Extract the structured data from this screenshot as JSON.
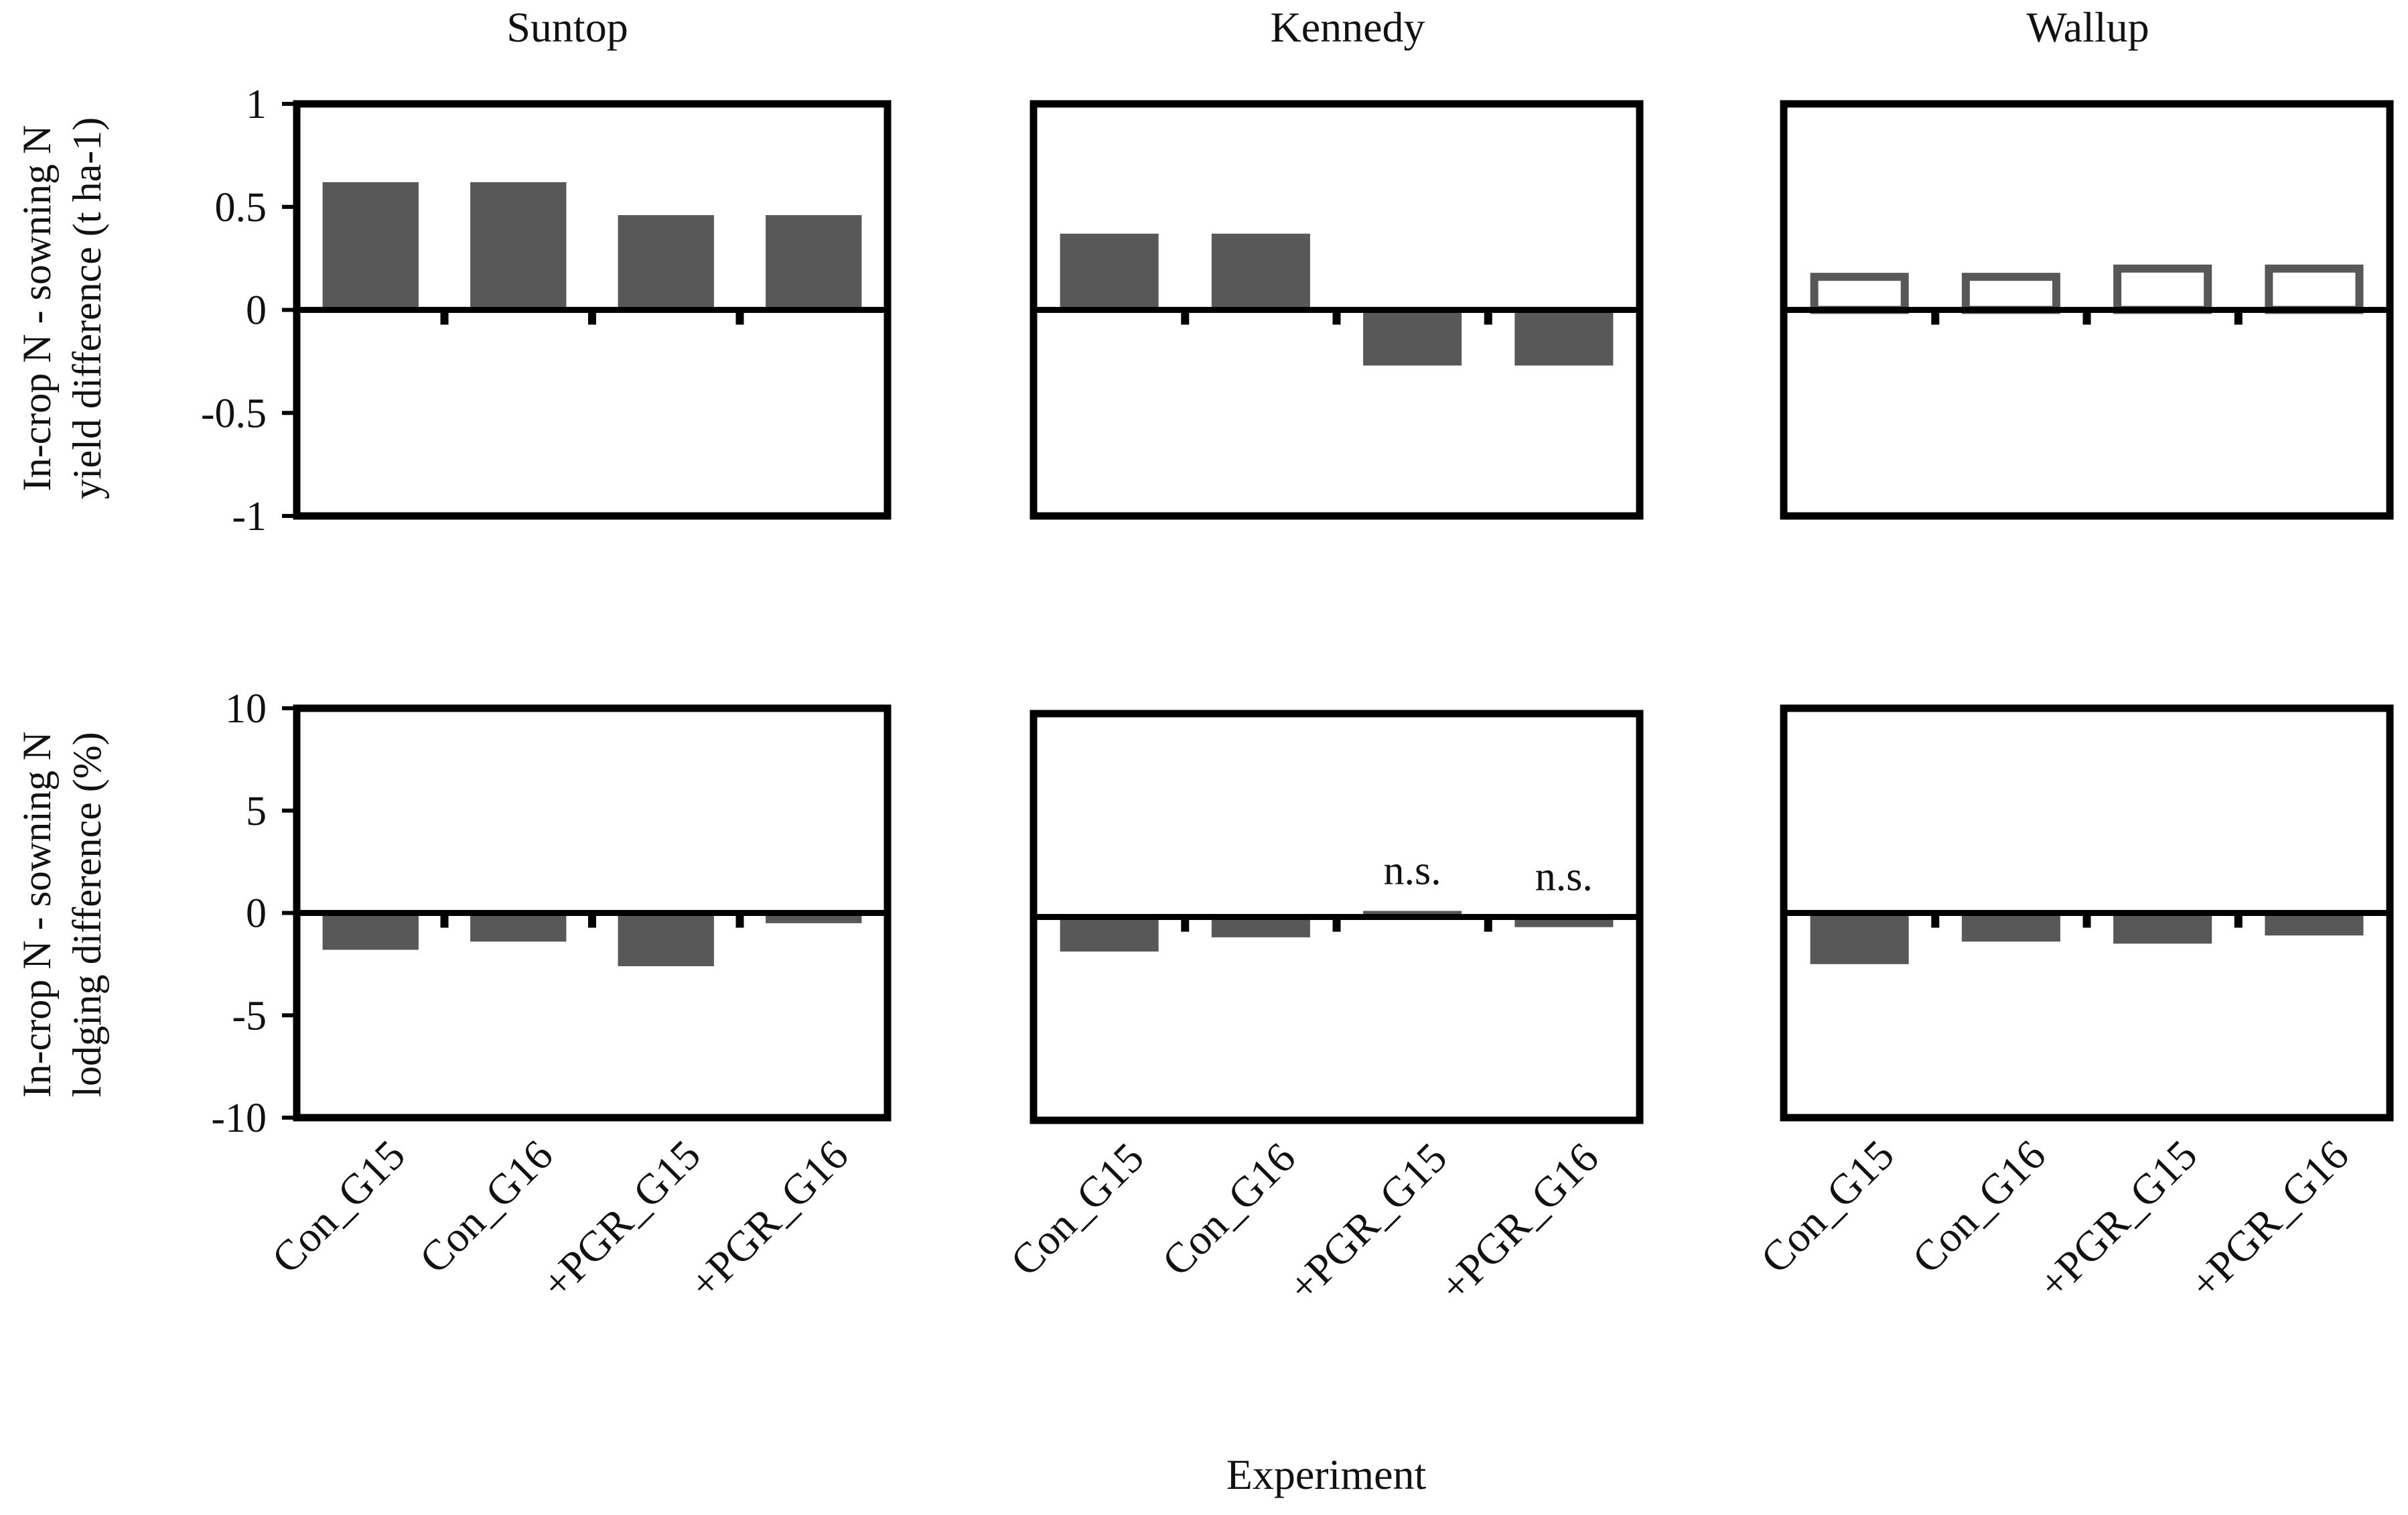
{
  "figure": {
    "xlabel": "Experiment",
    "row_labels": [
      {
        "line1": "In-crop N - sowning N",
        "line2": "yield difference (t ha-1)"
      },
      {
        "line1": "In-crop N - sowning N",
        "line2": "lodging difference (%)"
      }
    ],
    "column_titles": [
      "Suntop",
      "Kennedy",
      "Wallup"
    ]
  },
  "colors": {
    "bar_fill": "#585858",
    "bar_outline": "#585858",
    "axis": "#000000",
    "background": "#ffffff"
  },
  "chart_data": [
    {
      "type": "bar",
      "title": "Suntop",
      "panel": "yield",
      "categories": [
        "Con_G15",
        "Con_G16",
        "+PGR_G15",
        "+PGR_G16"
      ],
      "values": [
        0.62,
        0.62,
        0.46,
        0.46
      ],
      "fill": "solid",
      "annotations": [
        "",
        "",
        "",
        ""
      ],
      "ylabel": "In-crop N - sowning N yield difference (t ha-1)",
      "ylim": [
        -1,
        1
      ],
      "yticks": [
        1,
        0.5,
        0,
        -0.5,
        -1
      ],
      "ytick_labels": [
        "1",
        "0.5",
        "0",
        "-0.5",
        "-1"
      ],
      "show_yticks": true
    },
    {
      "type": "bar",
      "title": "Kennedy",
      "panel": "yield",
      "categories": [
        "Con_G15",
        "Con_G16",
        "+PGR_G15",
        "+PGR_G16"
      ],
      "values": [
        0.37,
        0.37,
        -0.27,
        -0.27
      ],
      "fill": "solid",
      "annotations": [
        "",
        "",
        "",
        ""
      ],
      "ylim": [
        -1,
        1
      ],
      "show_yticks": false
    },
    {
      "type": "bar",
      "title": "Wallup",
      "panel": "yield",
      "categories": [
        "Con_G15",
        "Con_G16",
        "+PGR_G15",
        "+PGR_G16"
      ],
      "values": [
        0.18,
        0.18,
        0.22,
        0.22
      ],
      "fill": "outline",
      "annotations": [
        "",
        "",
        "",
        ""
      ],
      "ylim": [
        -1,
        1
      ],
      "show_yticks": false
    },
    {
      "type": "bar",
      "title": "Suntop",
      "panel": "lodging",
      "categories": [
        "Con_G15",
        "Con_G16",
        "+PGR_G15",
        "+PGR_G16"
      ],
      "values": [
        -1.8,
        -1.4,
        -2.6,
        -0.5
      ],
      "fill": "solid",
      "annotations": [
        "",
        "",
        "",
        ""
      ],
      "ylabel": "In-crop N - sowning N lodging difference (%)",
      "ylim": [
        -10,
        10
      ],
      "yticks": [
        10,
        5,
        0,
        -5,
        -10
      ],
      "ytick_labels": [
        "10",
        "5",
        "0",
        "-5",
        "-10"
      ],
      "show_yticks": true
    },
    {
      "type": "bar",
      "title": "Kennedy",
      "panel": "lodging",
      "categories": [
        "Con_G15",
        "Con_G16",
        "+PGR_G15",
        "+PGR_G16"
      ],
      "values": [
        -1.7,
        -1.0,
        0.3,
        -0.5
      ],
      "fill": "solid",
      "annotations": [
        "",
        "",
        "n.s.",
        "n.s."
      ],
      "ylim": [
        -10,
        10
      ],
      "show_yticks": false
    },
    {
      "type": "bar",
      "title": "Wallup",
      "panel": "lodging",
      "categories": [
        "Con_G15",
        "Con_G16",
        "+PGR_G15",
        "+PGR_G16"
      ],
      "values": [
        -2.5,
        -1.4,
        -1.5,
        -1.1
      ],
      "fill": "solid",
      "annotations": [
        "",
        "",
        "",
        ""
      ],
      "ylim": [
        -10,
        10
      ],
      "show_yticks": false
    }
  ]
}
